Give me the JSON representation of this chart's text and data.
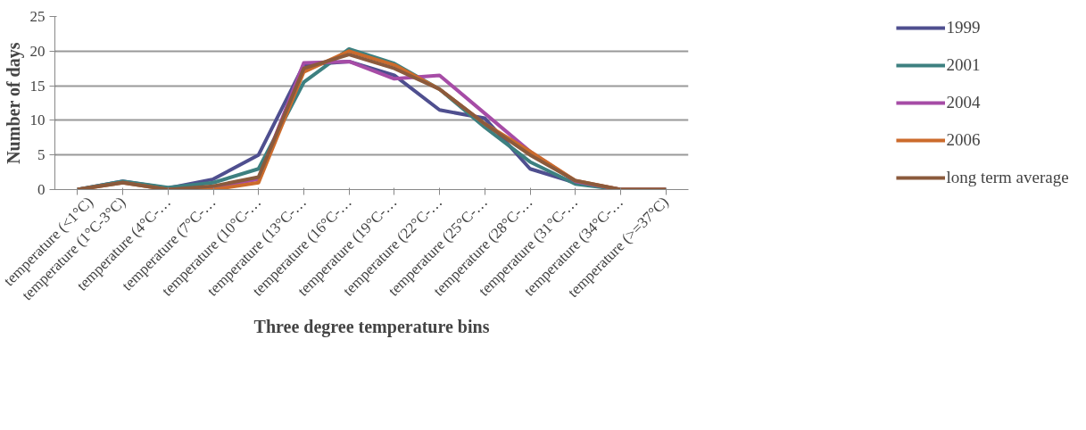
{
  "chart_data": {
    "type": "line",
    "xlabel": "Three degree temperature bins",
    "ylabel": "Number of days",
    "categories": [
      "temperature (<1°C)",
      "temperature (1°C-3°C)",
      "temperature (4°C-…",
      "temperature (7°C-…",
      "temperature (10°C-…",
      "temperature (13°C-…",
      "temperature (16°C-…",
      "temperature (19°C-…",
      "temperature (22°C-…",
      "temperature (25°C-…",
      "temperature (28°C-…",
      "temperature (31°C-…",
      "temperature (34°C-…",
      "temperature (>=37°C)"
    ],
    "series": [
      {
        "name": "1999",
        "color": "#4f4f8f",
        "values": [
          0,
          1.2,
          0.2,
          1.5,
          5,
          18,
          18.5,
          16.5,
          11.5,
          10.3,
          3,
          1,
          0,
          0
        ]
      },
      {
        "name": "2001",
        "color": "#3d8080",
        "values": [
          0,
          1.2,
          0.3,
          1,
          3,
          15.5,
          20.3,
          18.2,
          14.5,
          9,
          4,
          0.8,
          0,
          0
        ]
      },
      {
        "name": "2004",
        "color": "#a64ca6",
        "values": [
          null,
          null,
          0,
          0.3,
          1.5,
          18.3,
          18.5,
          16,
          16.5,
          11,
          5.5,
          1.2,
          0,
          0
        ]
      },
      {
        "name": "2006",
        "color": "#cc6b2c",
        "values": [
          0,
          1,
          0,
          0,
          1,
          17,
          20,
          18,
          14.5,
          9.5,
          5.5,
          1.3,
          0,
          0
        ]
      },
      {
        "name": "long term average",
        "color": "#8b5a3c",
        "values": [
          0,
          1,
          0,
          0.5,
          1.8,
          17.5,
          19.5,
          17.5,
          14.5,
          9.5,
          5,
          1.3,
          0,
          0
        ]
      }
    ],
    "ylim": [
      0,
      25
    ],
    "yticks": [
      0,
      5,
      10,
      15,
      20,
      25
    ],
    "grid": "y",
    "legend": "right",
    "marker": "none",
    "line_style": "solid"
  }
}
